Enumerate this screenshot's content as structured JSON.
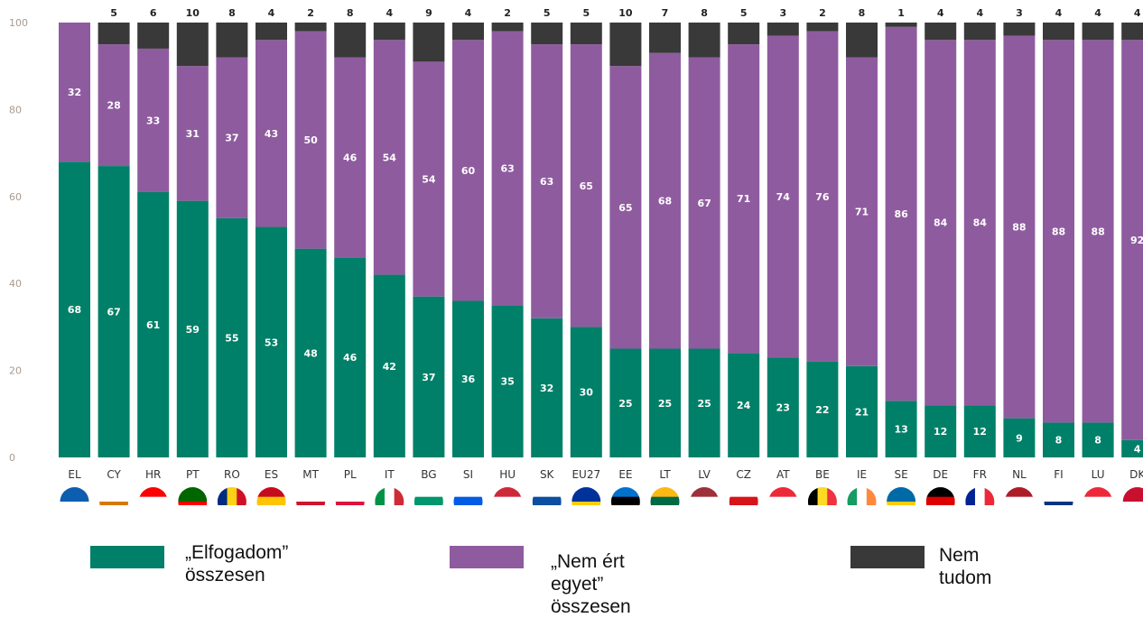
{
  "chart_data": {
    "type": "bar",
    "stacked": true,
    "ylim": [
      0,
      100
    ],
    "yticks": [
      0,
      20,
      40,
      60,
      80,
      100
    ],
    "categories": [
      "EL",
      "CY",
      "HR",
      "PT",
      "RO",
      "ES",
      "MT",
      "PL",
      "IT",
      "BG",
      "SI",
      "HU",
      "SK",
      "EU27",
      "EE",
      "LT",
      "LV",
      "CZ",
      "AT",
      "BE",
      "IE",
      "SE",
      "DE",
      "FR",
      "NL",
      "FI",
      "LU",
      "DK"
    ],
    "series": [
      {
        "name": "„Elfogadom” összesen",
        "color": "#008068",
        "values": [
          68,
          67,
          61,
          59,
          55,
          53,
          48,
          46,
          42,
          37,
          36,
          35,
          32,
          30,
          25,
          25,
          25,
          24,
          23,
          22,
          21,
          13,
          12,
          12,
          9,
          8,
          8,
          4
        ]
      },
      {
        "name": "„Nem ért egyet” összesen",
        "color": "#8f5b9f",
        "values": [
          32,
          28,
          33,
          31,
          37,
          43,
          50,
          46,
          54,
          54,
          60,
          63,
          63,
          65,
          65,
          68,
          67,
          71,
          74,
          76,
          71,
          86,
          84,
          84,
          88,
          88,
          88,
          92
        ]
      },
      {
        "name": "Nem tudom",
        "color": "#393939",
        "values": [
          0,
          5,
          6,
          10,
          8,
          4,
          2,
          8,
          4,
          9,
          4,
          2,
          5,
          5,
          10,
          7,
          8,
          5,
          3,
          2,
          8,
          1,
          4,
          4,
          3,
          4,
          4,
          4
        ]
      }
    ],
    "dontknow_labels": [
      "",
      "5",
      "6",
      "10",
      "8",
      "4",
      "2",
      "8",
      "4",
      "9",
      "4",
      "2",
      "5",
      "5",
      "10",
      "7",
      "8",
      "5",
      "3",
      "2",
      "8",
      "1",
      "4",
      "4",
      "3",
      "4",
      "4",
      "4"
    ],
    "legend_position": "bottom",
    "grid": false
  },
  "flags": [
    {
      "code": "EL",
      "colors": [
        "#0d5eaf",
        "#ffffff"
      ]
    },
    {
      "code": "CY",
      "colors": [
        "#ffffff",
        "#d57800"
      ]
    },
    {
      "code": "HR",
      "colors": [
        "#ff0000",
        "#ffffff",
        "#171796"
      ]
    },
    {
      "code": "PT",
      "colors": [
        "#006600",
        "#ff0000"
      ]
    },
    {
      "code": "RO",
      "colors": [
        "#002b7f",
        "#fcd116",
        "#ce1126"
      ]
    },
    {
      "code": "ES",
      "colors": [
        "#c60b1e",
        "#ffc400",
        "#c60b1e"
      ]
    },
    {
      "code": "MT",
      "colors": [
        "#ffffff",
        "#cf142b"
      ]
    },
    {
      "code": "PL",
      "colors": [
        "#ffffff",
        "#dc143c"
      ]
    },
    {
      "code": "IT",
      "colors": [
        "#009246",
        "#ffffff",
        "#ce2b37"
      ]
    },
    {
      "code": "BG",
      "colors": [
        "#ffffff",
        "#00966e",
        "#d62612"
      ]
    },
    {
      "code": "SI",
      "colors": [
        "#ffffff",
        "#005ce5",
        "#ff0000"
      ]
    },
    {
      "code": "HU",
      "colors": [
        "#ce2939",
        "#ffffff",
        "#477050"
      ]
    },
    {
      "code": "SK",
      "colors": [
        "#ffffff",
        "#0b4ea2",
        "#ee1c25"
      ]
    },
    {
      "code": "EU27",
      "colors": [
        "#003399",
        "#ffcc00"
      ]
    },
    {
      "code": "EE",
      "colors": [
        "#0072ce",
        "#000000",
        "#ffffff"
      ]
    },
    {
      "code": "LT",
      "colors": [
        "#fdb913",
        "#006a44",
        "#c1272d"
      ]
    },
    {
      "code": "LV",
      "colors": [
        "#9e3039",
        "#ffffff",
        "#9e3039"
      ]
    },
    {
      "code": "CZ",
      "colors": [
        "#ffffff",
        "#d7141a",
        "#11457e"
      ]
    },
    {
      "code": "AT",
      "colors": [
        "#ed2939",
        "#ffffff",
        "#ed2939"
      ]
    },
    {
      "code": "BE",
      "colors": [
        "#000000",
        "#fdda24",
        "#ef3340"
      ]
    },
    {
      "code": "IE",
      "colors": [
        "#169b62",
        "#ffffff",
        "#ff883e"
      ]
    },
    {
      "code": "SE",
      "colors": [
        "#006aa7",
        "#fecc00"
      ]
    },
    {
      "code": "DE",
      "colors": [
        "#000000",
        "#dd0000",
        "#ffce00"
      ]
    },
    {
      "code": "FR",
      "colors": [
        "#002395",
        "#ffffff",
        "#ed2939"
      ]
    },
    {
      "code": "NL",
      "colors": [
        "#ae1c28",
        "#ffffff",
        "#21468b"
      ]
    },
    {
      "code": "FI",
      "colors": [
        "#ffffff",
        "#003580"
      ]
    },
    {
      "code": "LU",
      "colors": [
        "#ed2939",
        "#ffffff",
        "#00a1de"
      ]
    },
    {
      "code": "DK",
      "colors": [
        "#c8102e",
        "#ffffff"
      ]
    }
  ],
  "legend": {
    "agree": {
      "text": "„Elfogadom”\nösszesen",
      "color": "#008068"
    },
    "disagree": {
      "text": "„Nem ért\negyet”\nösszesen",
      "color": "#8f5b9f"
    },
    "dontknow": {
      "text": "Nem tudom",
      "color": "#393939"
    }
  }
}
